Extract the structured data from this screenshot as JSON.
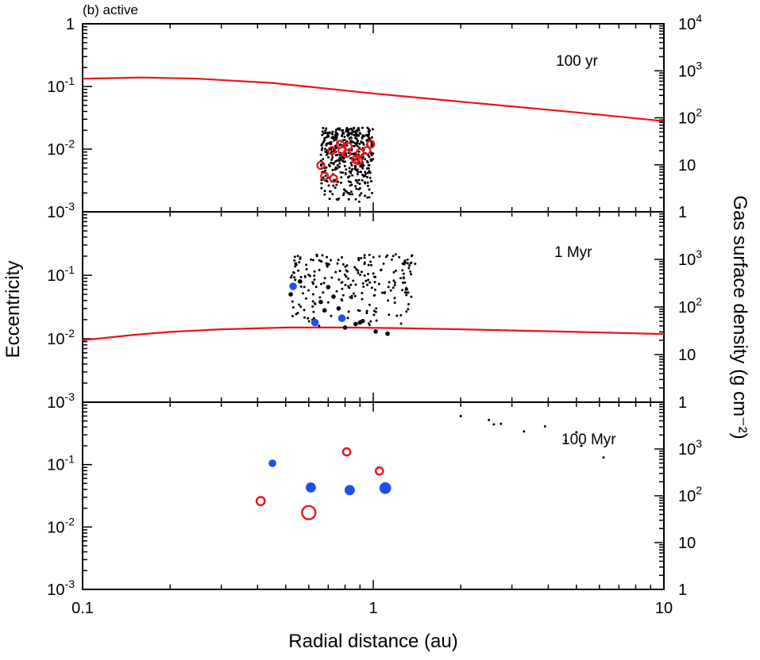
{
  "figure_label": "(b) active",
  "xlabel": "Radial distance (au)",
  "ylabel_left": "Eccentricity",
  "ylabel_right": "Gas surface density (g cm⁻²)",
  "x_ticks": [
    {
      "value": 0.1,
      "label": "0.1"
    },
    {
      "value": 1,
      "label": "1"
    },
    {
      "value": 10,
      "label": "10"
    }
  ],
  "colors": {
    "gas": "#e8141c",
    "blue": "#1f4ff0",
    "red": "#e8141c",
    "black": "#000000"
  },
  "chart_data": [
    {
      "type": "scatter",
      "panel_label": "100 yr",
      "x_scale": "log",
      "xlim": [
        0.1,
        10
      ],
      "y_scale": "log",
      "ylim": [
        0.001,
        1
      ],
      "y_ticks": [
        {
          "value": 1,
          "label": "1"
        },
        {
          "value": 0.1,
          "base": "10",
          "exp": "-1"
        },
        {
          "value": 0.01,
          "base": "10",
          "exp": "-2"
        },
        {
          "value": 0.001,
          "base": "10",
          "exp": "-3"
        }
      ],
      "y2_scale": "log",
      "y2lim": [
        1,
        10000
      ],
      "y2_ticks": [
        {
          "value": 10000,
          "base": "10",
          "exp": "4"
        },
        {
          "value": 1000,
          "base": "10",
          "exp": "3"
        },
        {
          "value": 100,
          "base": "10",
          "exp": "2"
        },
        {
          "value": 10,
          "label": "10"
        },
        {
          "value": 1,
          "label": "1"
        }
      ],
      "gas_surface_density": {
        "x": [
          0.1,
          0.16,
          0.25,
          0.45,
          1,
          2,
          5,
          10
        ],
        "y": [
          680,
          720,
          680,
          550,
          330,
          220,
          130,
          85
        ]
      },
      "series": [
        {
          "name": "small bodies",
          "style": "small-black-dot",
          "generated_cloud": {
            "count": 420,
            "xrange": [
              0.66,
              1.0
            ],
            "erange": [
              0.0014,
              0.022
            ]
          }
        },
        {
          "name": "protoplanets",
          "style": "red-open-circle",
          "size": "medium",
          "x": [
            0.66,
            0.68,
            0.72,
            0.73,
            0.77,
            0.78,
            0.81,
            0.82,
            0.87,
            0.89,
            0.9,
            0.95,
            0.98
          ],
          "y": [
            0.0055,
            0.0037,
            0.0095,
            0.0034,
            0.012,
            0.0095,
            0.0085,
            0.011,
            0.0068,
            0.0065,
            0.0088,
            0.0095,
            0.012
          ]
        }
      ]
    },
    {
      "type": "scatter",
      "panel_label": "1 Myr",
      "x_scale": "log",
      "xlim": [
        0.1,
        10
      ],
      "y_scale": "log",
      "ylim": [
        0.001,
        1
      ],
      "y_ticks": [
        {
          "value": 0.1,
          "base": "10",
          "exp": "-1"
        },
        {
          "value": 0.01,
          "base": "10",
          "exp": "-2"
        },
        {
          "value": 0.001,
          "base": "10",
          "exp": "-3"
        }
      ],
      "y2_scale": "log",
      "y2lim": [
        1,
        10000
      ],
      "y2_ticks": [
        {
          "value": 1000,
          "base": "10",
          "exp": "3"
        },
        {
          "value": 100,
          "base": "10",
          "exp": "2"
        },
        {
          "value": 10,
          "label": "10"
        },
        {
          "value": 1,
          "label": "1"
        }
      ],
      "gas_surface_density": {
        "x": [
          0.1,
          0.15,
          0.2,
          0.3,
          0.5,
          0.8,
          1.2,
          2,
          5,
          10
        ],
        "y": [
          20,
          26,
          30,
          34,
          37,
          37,
          36,
          34,
          30,
          27
        ]
      },
      "series": [
        {
          "name": "small bodies",
          "style": "small-black-dot",
          "generated_cloud": {
            "count": 230,
            "xrange": [
              0.52,
              1.4
            ],
            "erange": [
              0.015,
              0.22
            ]
          }
        },
        {
          "name": "black medium",
          "style": "black-filled-medium",
          "x": [
            0.52,
            0.56,
            0.66,
            0.68,
            0.7,
            0.73,
            0.76,
            0.8,
            0.87,
            0.9,
            0.92,
            1.02,
            1.12
          ],
          "y": [
            0.05,
            0.08,
            0.038,
            0.028,
            0.065,
            0.046,
            0.03,
            0.015,
            0.017,
            0.018,
            0.019,
            0.013,
            0.012
          ]
        },
        {
          "name": "blue filled",
          "style": "blue-filled-medium",
          "x": [
            0.53,
            0.63,
            0.78
          ],
          "y": [
            0.067,
            0.018,
            0.021
          ]
        }
      ]
    },
    {
      "type": "scatter",
      "panel_label": "100 Myr",
      "x_scale": "log",
      "xlim": [
        0.1,
        10
      ],
      "y_scale": "log",
      "ylim": [
        0.001,
        1
      ],
      "y_ticks": [
        {
          "value": 0.1,
          "base": "10",
          "exp": "-1"
        },
        {
          "value": 0.01,
          "base": "10",
          "exp": "-2"
        },
        {
          "value": 0.001,
          "base": "10",
          "exp": "-3"
        }
      ],
      "y2_scale": "log",
      "y2lim": [
        1,
        10000
      ],
      "y2_ticks": [
        {
          "value": 1000,
          "base": "10",
          "exp": "3"
        },
        {
          "value": 100,
          "base": "10",
          "exp": "2"
        },
        {
          "value": 10,
          "label": "10"
        },
        {
          "value": 1,
          "label": "1"
        }
      ],
      "series": [
        {
          "name": "small bodies",
          "style": "small-black-dot",
          "x": [
            2.0,
            2.5,
            2.6,
            2.75,
            3.3,
            4.6,
            5.2,
            6.2,
            5.0,
            3.9
          ],
          "y": [
            0.6,
            0.52,
            0.44,
            0.45,
            0.34,
            0.24,
            0.2,
            0.13,
            0.33,
            0.41
          ]
        },
        {
          "name": "blue filled",
          "style": "blue-filled",
          "x": [
            0.45,
            0.61,
            0.83,
            1.1
          ],
          "y": [
            0.105,
            0.043,
            0.039,
            0.042
          ],
          "sizes": [
            4.8,
            6.4,
            6.4,
            7.4
          ]
        },
        {
          "name": "red open",
          "style": "red-open",
          "x": [
            0.41,
            0.6,
            0.81,
            1.05
          ],
          "y": [
            0.026,
            0.017,
            0.16,
            0.079
          ],
          "sizes": [
            5.2,
            8.4,
            4.6,
            4.6
          ]
        }
      ]
    }
  ]
}
